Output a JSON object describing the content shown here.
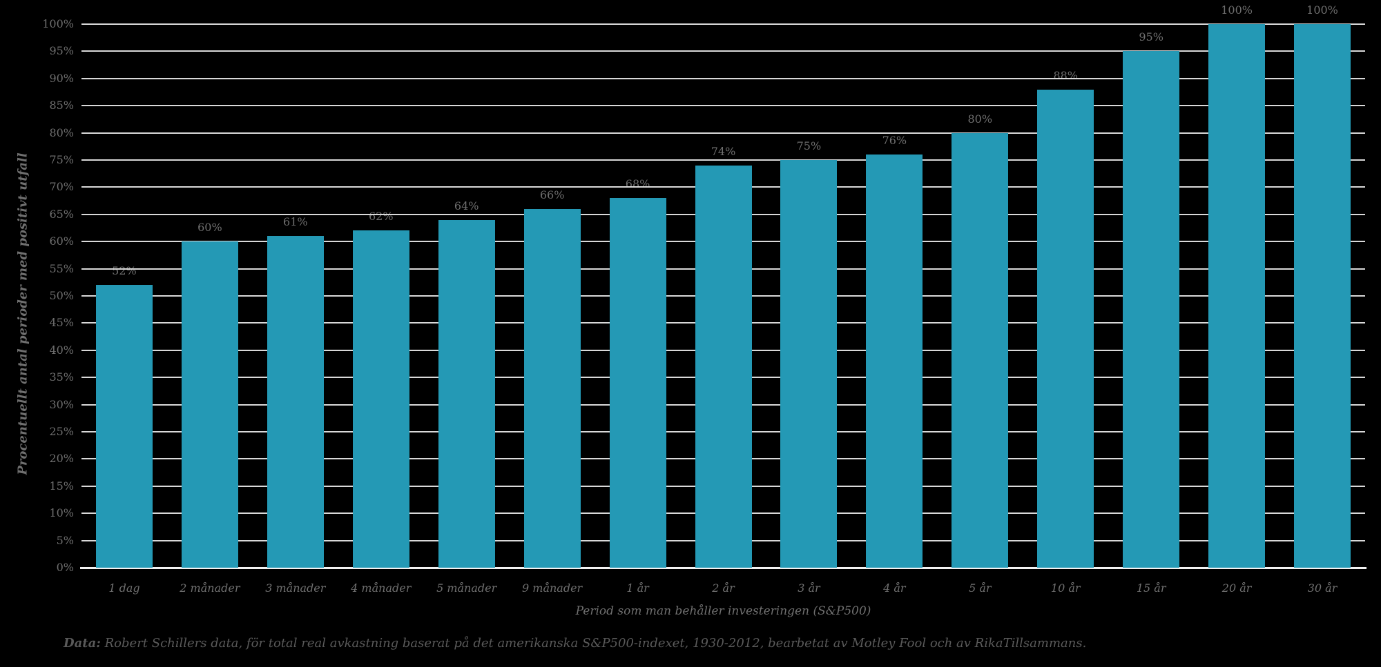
{
  "chart_data": {
    "type": "bar",
    "categories": [
      "1 dag",
      "2 månader",
      "3 månader",
      "4 månader",
      "5 månader",
      "9 månader",
      "1 år",
      "2 år",
      "3 år",
      "4 år",
      "5 år",
      "10 år",
      "15 år",
      "20 år",
      "30 år"
    ],
    "values": [
      52,
      60,
      61,
      62,
      64,
      66,
      68,
      74,
      75,
      76,
      80,
      88,
      95,
      100,
      100
    ],
    "value_label_suffix": "%",
    "title": "",
    "xlabel": "Period som man behåller investeringen (S&P500)",
    "ylabel": "Procentuellt antal perioder med positivt utfall",
    "ylim": [
      0,
      100
    ],
    "ytick_step": 5,
    "ytick_suffix": "%",
    "grid": "horizontal",
    "legend_position": "none",
    "colors": {
      "background": "#000000",
      "bar": "#2499B5",
      "gridline": "#D9D9D9",
      "axis_line": "#F2F2F2",
      "tick_label": "#6F6F6F",
      "value_label": "#6F6F6F",
      "axis_title": "#6F6F6F",
      "footer_text": "#595959"
    }
  },
  "footer": {
    "prefix": "Data:",
    "text": " Robert Schillers data, för total real avkastning baserat på det amerikanska S&P500-indexet, 1930-2012, bearbetat av Motley Fool och av RikaTillsammans."
  }
}
